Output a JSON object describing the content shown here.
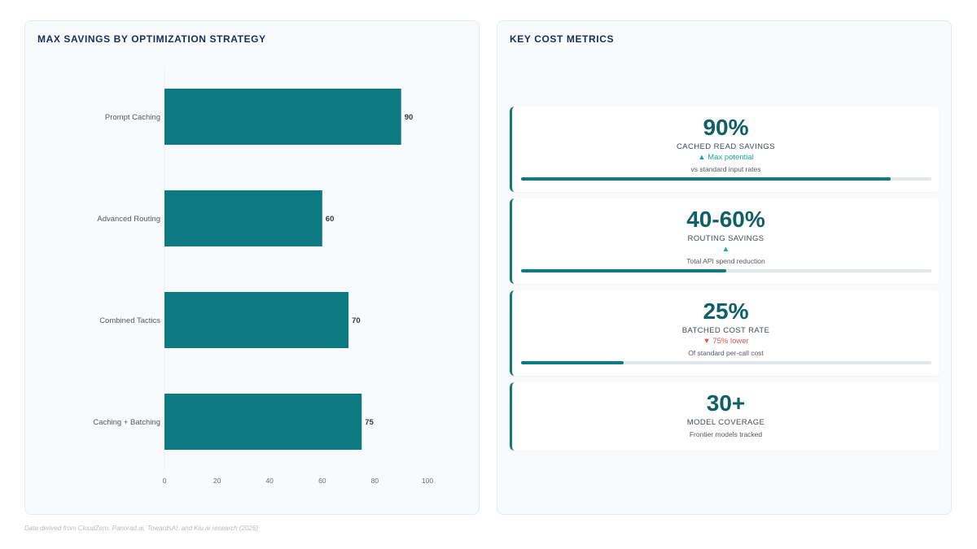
{
  "left_panel": {
    "title": "MAX SAVINGS BY OPTIMIZATION STRATEGY"
  },
  "right_panel": {
    "title": "KEY COST METRICS"
  },
  "chart_data": {
    "type": "bar",
    "orientation": "horizontal",
    "categories": [
      "Prompt Caching",
      "Advanced Routing",
      "Combined Tactics",
      "Caching + Batching"
    ],
    "values": [
      90,
      60,
      70,
      75
    ],
    "xlim": [
      0,
      100
    ],
    "xticks": [
      0,
      20,
      40,
      60,
      80,
      100
    ],
    "bar_color": "#0c7a80",
    "data_labels": true,
    "grid": false
  },
  "metrics": [
    {
      "value": "90%",
      "label": "CACHED READ SAVINGS",
      "change": "▲ Max potential",
      "direction": "up",
      "sub": "vs standard input rates",
      "progress": 0.9
    },
    {
      "value": "40-60%",
      "label": "ROUTING SAVINGS",
      "change": "▲",
      "direction": "up",
      "sub": "Total API spend reduction",
      "progress": 0.5
    },
    {
      "value": "25%",
      "label": "BATCHED COST RATE",
      "change": "▼ 75% lower",
      "direction": "down",
      "sub": "Of standard per-call cost",
      "progress": 0.25
    },
    {
      "value": "30+",
      "label": "MODEL COVERAGE",
      "change": "",
      "direction": "",
      "sub": "Frontier models tracked",
      "progress": null
    }
  ],
  "footnote": "Data derived from CloudZero, Panorad.ai, TowardsAI, and Kiu.ai research (2026)",
  "colors": {
    "accent": "#0c7a80",
    "value_text": "#0f5f66",
    "title": "#1f2a5c",
    "up": "#1faa8c",
    "down": "#e05a4f"
  }
}
